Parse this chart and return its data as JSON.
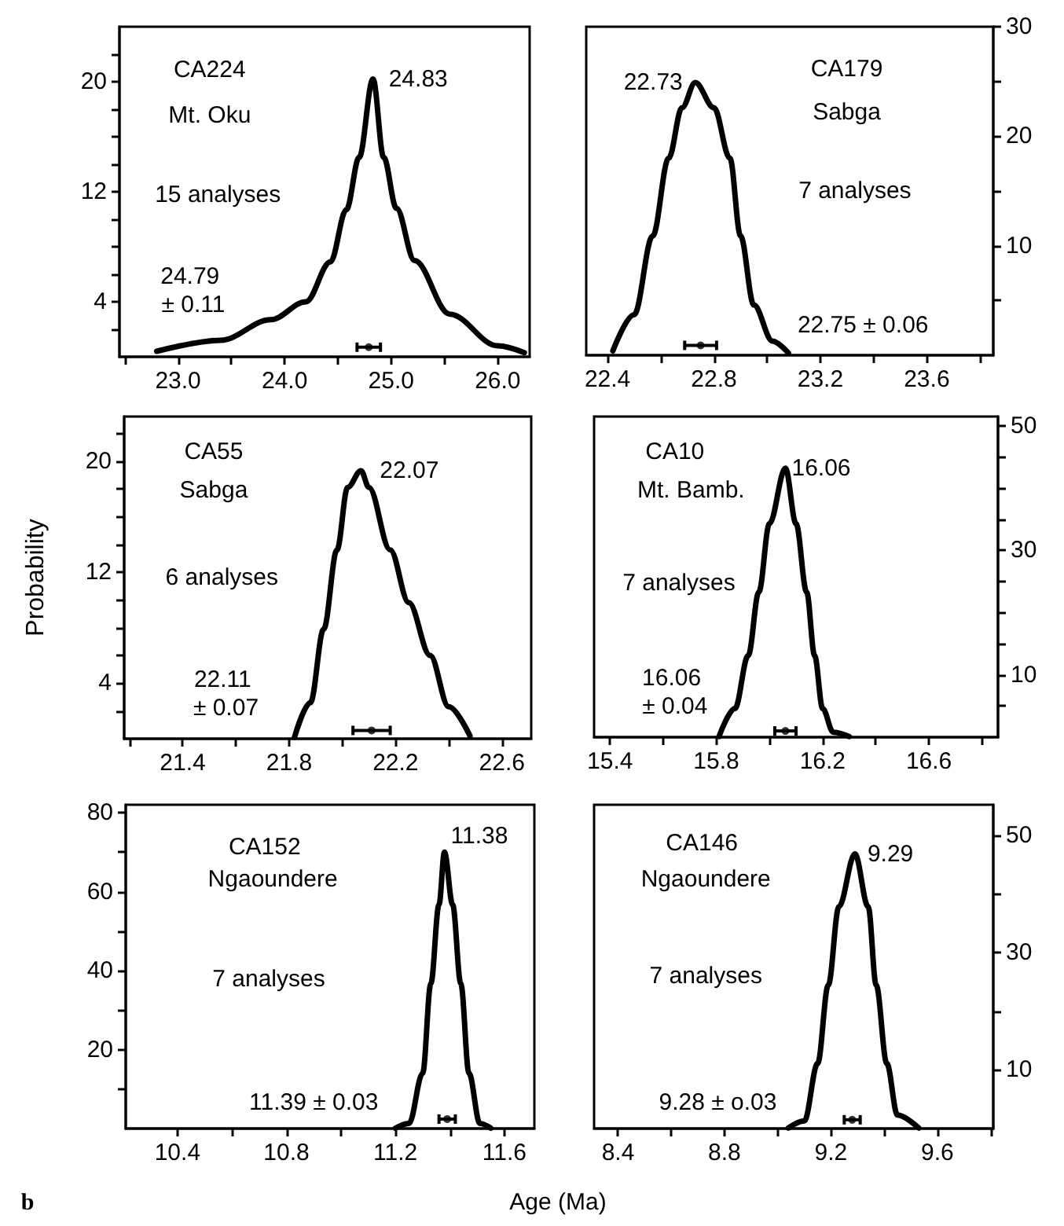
{
  "chart_data": [
    {
      "type": "line",
      "title": "CA224",
      "subtitle": "Mt. Oku",
      "xlim": [
        22.45,
        26.3
      ],
      "ylim": [
        0,
        24
      ],
      "xticks": [
        {
          "value": 22.5,
          "label": null
        },
        {
          "value": 23,
          "label": "23.0"
        },
        {
          "value": 23.5,
          "label": null
        },
        {
          "value": 24,
          "label": "24.0"
        },
        {
          "value": 24.5,
          "label": null
        },
        {
          "value": 25,
          "label": "25.0"
        },
        {
          "value": 25.5,
          "label": null
        },
        {
          "value": 26,
          "label": "26.0"
        }
      ],
      "yticks": [
        {
          "value": 2,
          "label": null
        },
        4,
        {
          "value": 6,
          "label": null
        },
        {
          "value": 8,
          "label": null
        },
        {
          "value": 10,
          "label": null
        },
        12,
        {
          "value": 14,
          "label": null
        },
        {
          "value": 16,
          "label": null
        },
        {
          "value": 18,
          "label": null
        },
        20,
        {
          "value": 22,
          "label": null
        }
      ],
      "grid": false,
      "series": [
        {
          "marker": "none",
          "color": "#000000",
          "x": [
            22.8,
            23.4,
            23.87,
            24.2,
            24.43,
            24.58,
            24.7,
            24.83,
            24.93,
            25.05,
            25.22,
            25.55,
            26.0,
            26.25
          ],
          "values": [
            0.4,
            1.2,
            2.7,
            4.0,
            6.9,
            10.7,
            14.5,
            20.2,
            14.5,
            10.8,
            7.0,
            3.1,
            0.8,
            0.3
          ]
        },
        {
          "type": "scatter",
          "marker": "circle",
          "color": "#000000",
          "x": [
            24.79
          ],
          "values": [
            0.7
          ],
          "xerrors": [
            0.11
          ]
        }
      ],
      "annotations": [
        {
          "text": "24.83",
          "x": 24.83,
          "y": 20.2
        },
        "15 analyses",
        "24.79 ± 0.11"
      ]
    },
    {
      "type": "line",
      "title": "CA179",
      "subtitle": "Sabga",
      "xlim": [
        22.32,
        23.85
      ],
      "ylim": [
        0,
        30
      ],
      "xticks": [
        22.4,
        {
          "value": 22.6,
          "label": null
        },
        22.8,
        {
          "value": 23.0,
          "label": null
        },
        23.2,
        {
          "value": 23.4,
          "label": null
        },
        23.6,
        {
          "value": 23.8,
          "label": null
        }
      ],
      "yticks": [
        {
          "value": 5,
          "label": null
        },
        10,
        {
          "value": 15,
          "label": null
        },
        20,
        {
          "value": 25,
          "label": null
        },
        30
      ],
      "grid": false,
      "series": [
        {
          "marker": "none",
          "color": "#000000",
          "x": [
            22.42,
            22.5,
            22.57,
            22.63,
            22.68,
            22.73,
            22.8,
            22.86,
            22.9,
            22.95,
            23.02,
            23.08
          ],
          "values": [
            0.4,
            3.7,
            10.9,
            18,
            22.6,
            24.9,
            22.6,
            18,
            10.9,
            4.6,
            1.3,
            0.2
          ]
        },
        {
          "type": "scatter",
          "marker": "circle",
          "color": "#000000",
          "x": [
            22.75
          ],
          "values": [
            0.9
          ],
          "xerrors": [
            0.06
          ]
        }
      ],
      "annotations": [
        {
          "text": "22.73",
          "x": 22.73,
          "y": 24.9
        },
        "7 analyses",
        "22.75 ± 0.06"
      ]
    },
    {
      "type": "line",
      "title": "CA55",
      "subtitle": "Sabga",
      "ylabel": "Probability",
      "xlim": [
        21.18,
        22.71
      ],
      "ylim": [
        0,
        23.2
      ],
      "xticks": [
        {
          "value": 21.2,
          "label": null
        },
        21.4,
        {
          "value": 21.6,
          "label": null
        },
        21.8,
        {
          "value": 22.0,
          "label": null
        },
        22.2,
        {
          "value": 22.4,
          "label": null
        },
        22.6
      ],
      "yticks": [
        {
          "value": 2,
          "label": null
        },
        4,
        {
          "value": 6,
          "label": null
        },
        {
          "value": 8,
          "label": null
        },
        {
          "value": 10,
          "label": null
        },
        12,
        {
          "value": 14,
          "label": null
        },
        {
          "value": 16,
          "label": null
        },
        {
          "value": 18,
          "label": null
        },
        20,
        {
          "value": 22,
          "label": null
        }
      ],
      "grid": false,
      "series": [
        {
          "marker": "none",
          "color": "#000000",
          "x": [
            21.82,
            21.88,
            21.93,
            21.98,
            22.02,
            22.07,
            22.1,
            22.18,
            22.25,
            22.33,
            22.4,
            22.48
          ],
          "values": [
            0.1,
            2.6,
            7.9,
            13.6,
            18.1,
            19.3,
            18.1,
            13.6,
            9.8,
            6.0,
            2.3,
            0.2
          ]
        },
        {
          "type": "scatter",
          "marker": "circle",
          "color": "#000000",
          "x": [
            22.11
          ],
          "values": [
            0.6
          ],
          "xerrors": [
            0.07
          ]
        }
      ],
      "annotations": [
        {
          "text": "22.07",
          "x": 22.07,
          "y": 19.3
        },
        "6 analyses",
        "22.11 ± 0.07"
      ]
    },
    {
      "type": "line",
      "title": "CA10",
      "subtitle": "Mt. Bamb.",
      "xlim": [
        15.34,
        16.86
      ],
      "ylim": [
        0,
        51.5
      ],
      "xticks": [
        15.4,
        {
          "value": 15.6,
          "label": null
        },
        15.8,
        {
          "value": 16.0,
          "label": null
        },
        16.2,
        {
          "value": 16.4,
          "label": null
        },
        16.6,
        {
          "value": 16.8,
          "label": null
        }
      ],
      "yticks": [
        {
          "value": 5,
          "label": null
        },
        10,
        {
          "value": 15,
          "label": null
        },
        {
          "value": 20,
          "label": null
        },
        {
          "value": 25,
          "label": null
        },
        30,
        {
          "value": 35,
          "label": null
        },
        {
          "value": 40,
          "label": null
        },
        {
          "value": 45,
          "label": null
        },
        50
      ],
      "grid": false,
      "series": [
        {
          "marker": "none",
          "color": "#000000",
          "x": [
            15.81,
            15.87,
            15.92,
            15.96,
            16.0,
            16.06,
            16.1,
            16.14,
            16.17,
            16.2,
            16.24,
            16.3
          ],
          "values": [
            0.1,
            4.6,
            13.1,
            23.3,
            34.3,
            43.2,
            34.3,
            23.3,
            13.1,
            4.6,
            0.8,
            0.1
          ]
        },
        {
          "type": "scatter",
          "marker": "circle",
          "color": "#000000",
          "x": [
            16.06
          ],
          "values": [
            1.0
          ],
          "xerrors": [
            0.04
          ]
        }
      ],
      "annotations": [
        {
          "text": "16.06",
          "x": 16.06,
          "y": 43.2
        },
        "7 analyses",
        "16.06 ± 0.04"
      ]
    },
    {
      "type": "line",
      "title": "CA152",
      "subtitle": "Ngaoundere",
      "xlabel": "Age (Ma)",
      "xlim": [
        10.21,
        11.71
      ],
      "ylim": [
        0,
        82
      ],
      "xticks": [
        10.4,
        {
          "value": 10.6,
          "label": null
        },
        10.8,
        {
          "value": 11.0,
          "label": null
        },
        11.2,
        {
          "value": 11.4,
          "label": null
        },
        11.6
      ],
      "yticks": [
        {
          "value": 10,
          "label": null
        },
        20,
        {
          "value": 30,
          "label": null
        },
        40,
        {
          "value": 50,
          "label": null
        },
        60,
        {
          "value": 70,
          "label": null
        },
        80
      ],
      "grid": false,
      "series": [
        {
          "marker": "none",
          "color": "#000000",
          "x": [
            11.2,
            11.25,
            11.3,
            11.33,
            11.36,
            11.38,
            11.41,
            11.44,
            11.47,
            11.51,
            11.55
          ],
          "values": [
            0.1,
            1.3,
            14,
            36.7,
            56.7,
            70,
            56.7,
            36.7,
            14,
            1.3,
            0.1
          ]
        },
        {
          "type": "scatter",
          "marker": "circle",
          "color": "#000000",
          "x": [
            11.39
          ],
          "values": [
            2.4
          ],
          "xerrors": [
            0.03
          ]
        }
      ],
      "annotations": [
        {
          "text": "11.38",
          "x": 11.38,
          "y": 70
        },
        "7 analyses",
        "11.39 ± 0.03",
        "b"
      ]
    },
    {
      "type": "line",
      "title": "CA146",
      "subtitle": "Ngaoundere",
      "xlim": [
        8.31,
        9.81
      ],
      "ylim": [
        0,
        55.3
      ],
      "xticks": [
        8.4,
        {
          "value": 8.6,
          "label": null
        },
        8.8,
        {
          "value": 9.0,
          "label": null
        },
        9.2,
        {
          "value": 9.4,
          "label": null
        },
        9.6,
        {
          "value": 9.8,
          "label": null
        }
      ],
      "yticks": [
        10,
        {
          "value": 20,
          "label": null
        },
        30,
        {
          "value": 40,
          "label": null
        },
        50
      ],
      "grid": false,
      "series": [
        {
          "marker": "none",
          "color": "#000000",
          "x": [
            9.04,
            9.1,
            9.15,
            9.19,
            9.23,
            9.29,
            9.34,
            9.37,
            9.41,
            9.45,
            9.53
          ],
          "values": [
            0.1,
            1.3,
            11.1,
            24.5,
            37.9,
            46.9,
            37.9,
            24.5,
            11.1,
            2.3,
            0.1
          ]
        },
        {
          "type": "scatter",
          "marker": "circle",
          "color": "#000000",
          "x": [
            9.28
          ],
          "values": [
            1.5
          ],
          "xerrors": [
            0.03
          ]
        }
      ],
      "annotations": [
        {
          "text": "9.29",
          "x": 9.29,
          "y": 46.9
        },
        "7 analyses",
        "9.28 ± o.03"
      ]
    }
  ]
}
